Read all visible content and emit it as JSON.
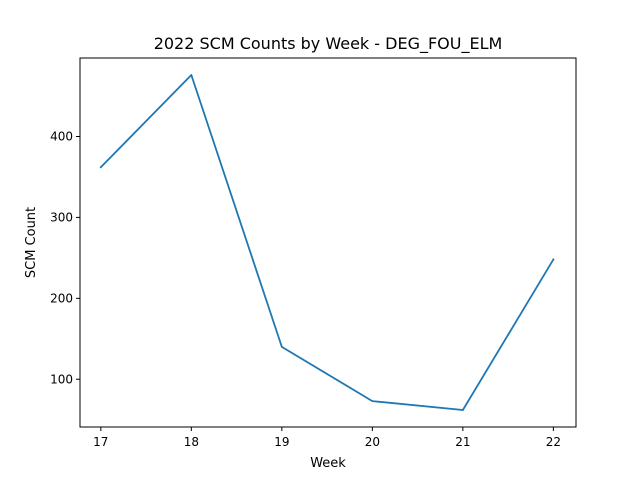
{
  "chart_data": {
    "type": "line",
    "title": "2022 SCM Counts by Week - DEG_FOU_ELM",
    "xlabel": "Week",
    "ylabel": "SCM Count",
    "x": [
      17,
      18,
      19,
      20,
      21,
      22
    ],
    "series": [
      {
        "values": [
          362,
          476,
          140,
          73,
          62,
          248
        ],
        "color": "#1f77b4"
      }
    ],
    "xlim": [
      16.77,
      22.25
    ],
    "ylim": [
      41,
      497
    ],
    "xticks": [
      17,
      18,
      19,
      20,
      21,
      22
    ],
    "yticks": [
      100,
      200,
      300,
      400
    ],
    "grid": false,
    "legend": "none"
  }
}
